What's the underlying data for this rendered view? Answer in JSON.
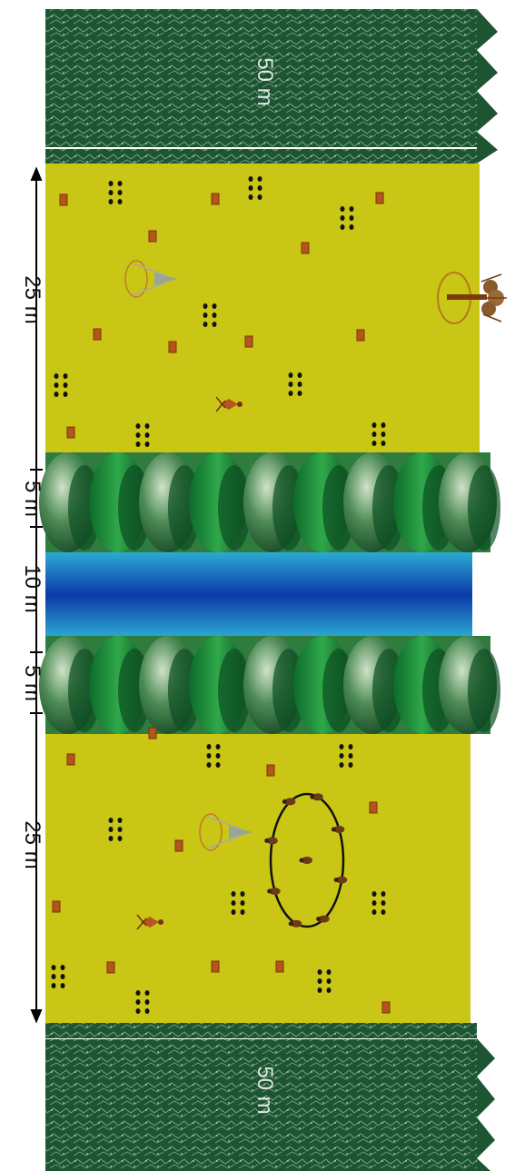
{
  "diagram": {
    "labels": {
      "forest_top_width": "50 m",
      "field_top": "25 m",
      "buffer_top": "5 m",
      "river": "10 m",
      "buffer_bottom": "5 m",
      "field_bottom": "25 m",
      "forest_bottom_width": "50 m"
    },
    "colors": {
      "forest": "#1f5c36",
      "field": "#c9c616",
      "riparian": "#2e7d3e",
      "river_edge": "#2fd0e0",
      "river_center": "#0a3fb0",
      "dimension_line": "#000000",
      "boundary_line": "#ffffff",
      "soil_box": "#b4561a"
    },
    "zones": [
      {
        "name": "forest-top",
        "kind": "forest"
      },
      {
        "name": "field-top",
        "kind": "field"
      },
      {
        "name": "riparian-top",
        "kind": "riparian"
      },
      {
        "name": "river",
        "kind": "river"
      },
      {
        "name": "riparian-bottom",
        "kind": "riparian"
      },
      {
        "name": "field-bottom",
        "kind": "field"
      },
      {
        "name": "forest-bottom",
        "kind": "forest"
      }
    ]
  }
}
